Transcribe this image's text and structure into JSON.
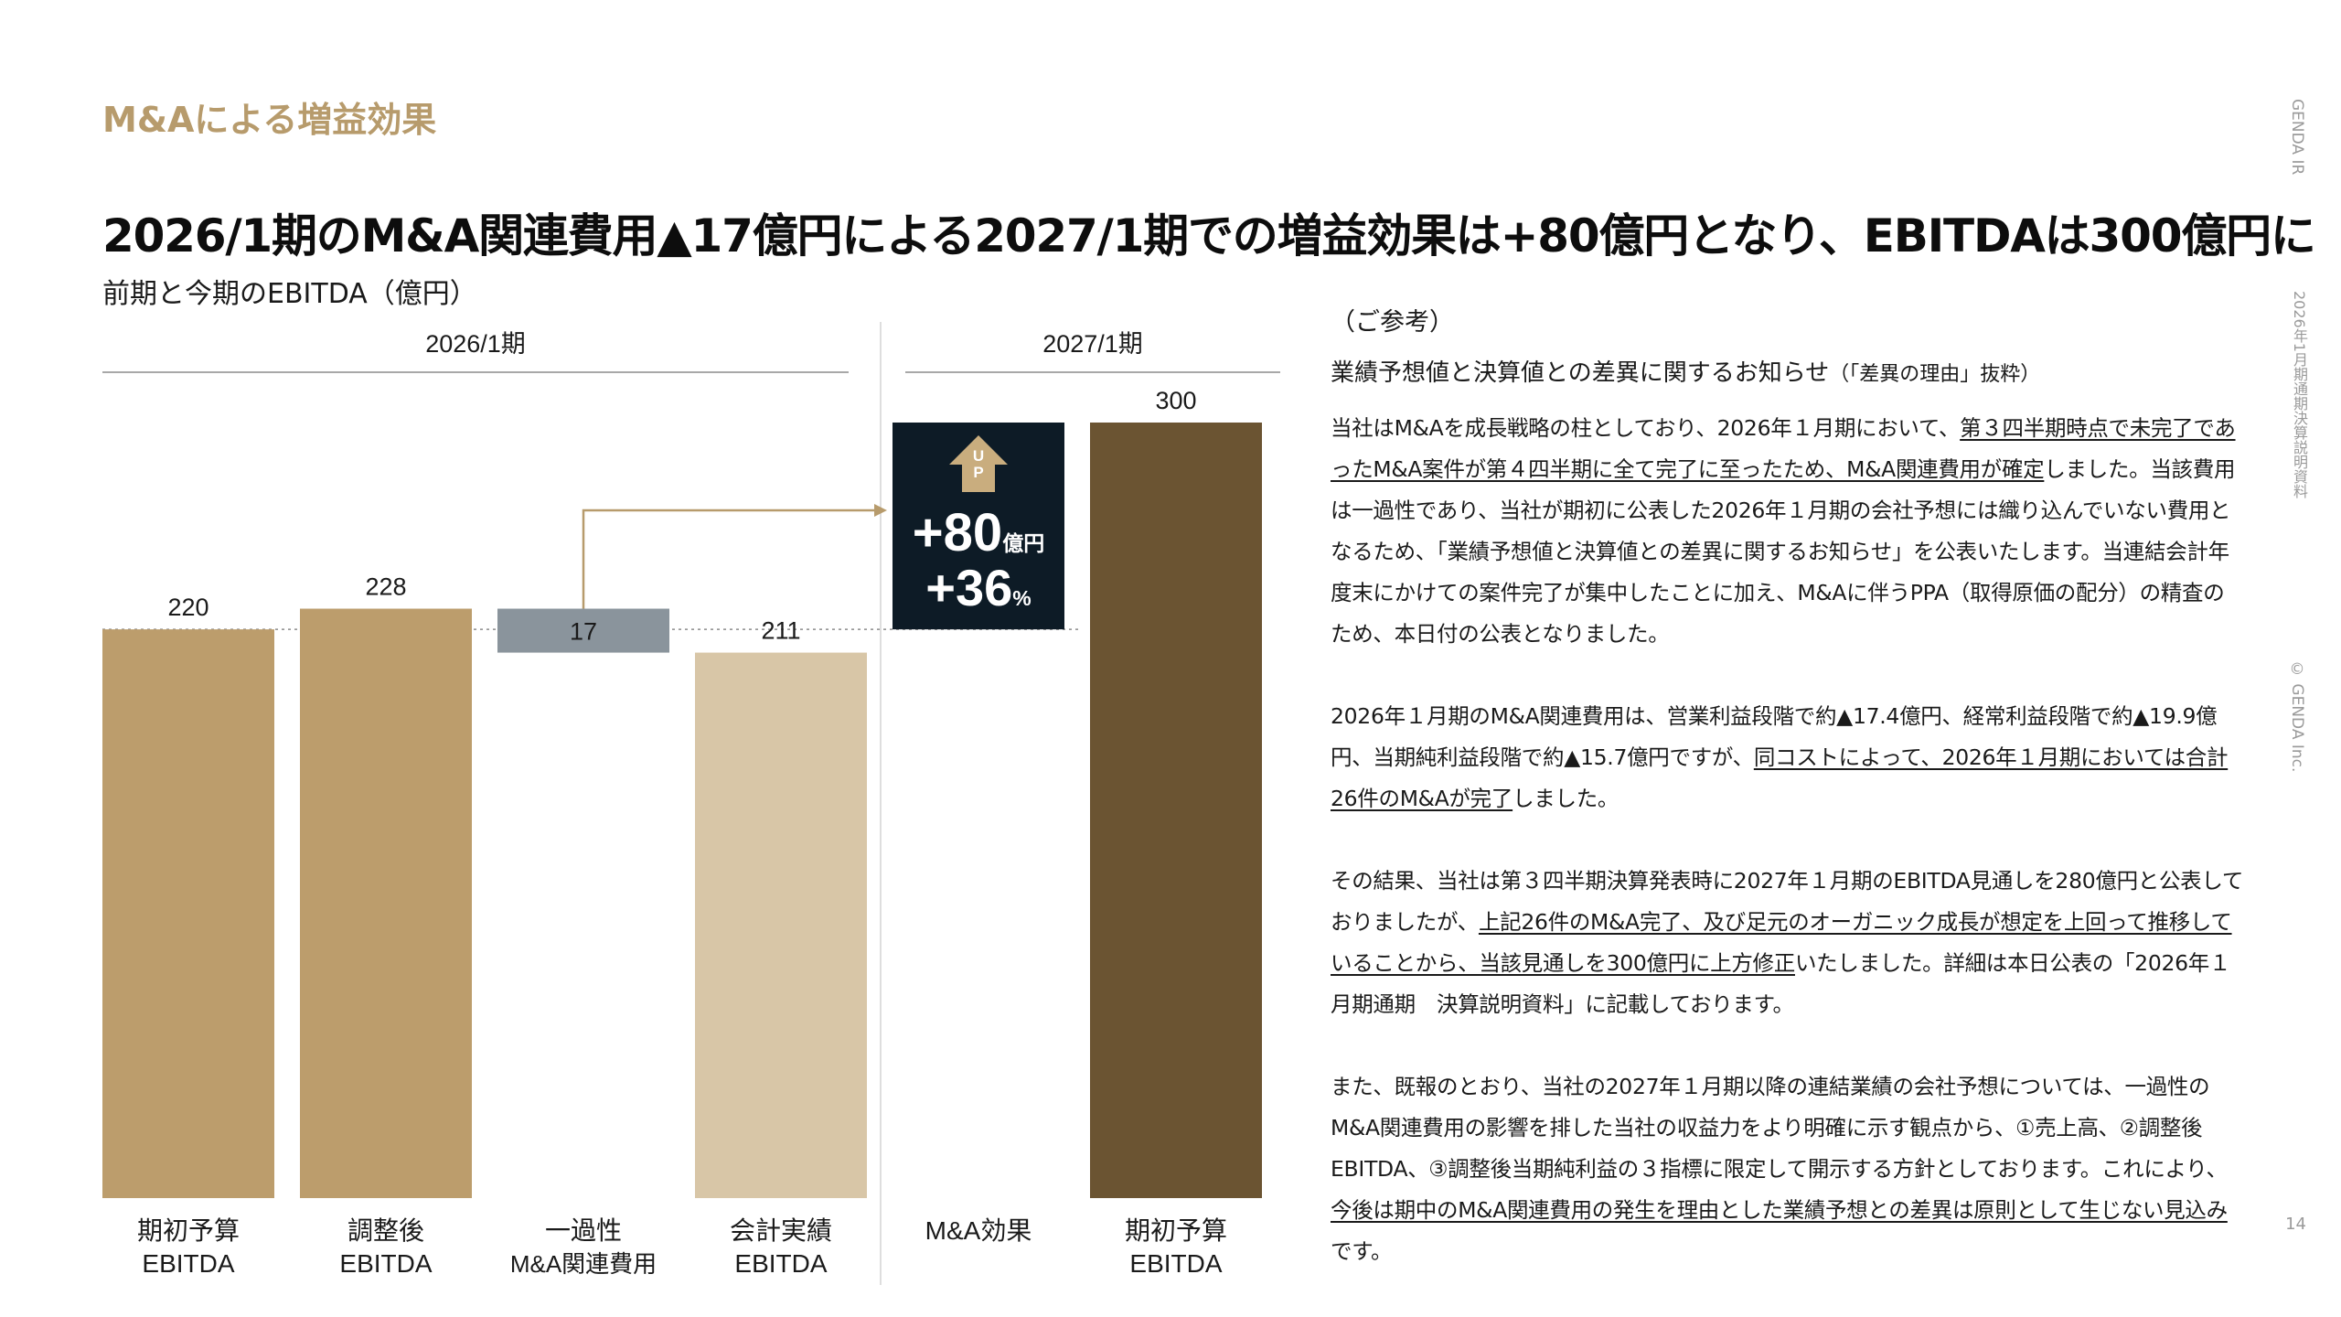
{
  "header": {
    "section_label": "M&Aによる増益効果",
    "headline": "2026/1期のM&A関連費用▲17億円による2027/1期での増益効果は+80億円となり、EBITDAは300億円に",
    "subtitle": "前期と今期のEBITDA（億円）"
  },
  "side": {
    "brand": "GENDA IR",
    "doc": "2026年1月期通期決算説明資料",
    "copyright": "© GENDA Inc.",
    "page": "14"
  },
  "colors": {
    "gold": "#bc9d6c",
    "light_gold": "#d8c6a7",
    "grey": "#8a949c",
    "brown": "#6b5432",
    "navy": "#0d1b26",
    "accent_text": "#b79b6c"
  },
  "chart_data": {
    "type": "bar",
    "subtype": "waterfall",
    "groups": [
      {
        "label": "2026/1期",
        "categories": [
          0,
          1,
          2,
          3
        ]
      },
      {
        "label": "2027/1期",
        "categories": [
          4,
          5
        ]
      }
    ],
    "categories": [
      [
        "期初予算",
        "EBITDA"
      ],
      [
        "調整後",
        "EBITDA"
      ],
      [
        "一過性",
        "M&A関連費用"
      ],
      [
        "会計実績",
        "EBITDA"
      ],
      [
        "M&A効果"
      ],
      [
        "期初予算",
        "EBITDA"
      ]
    ],
    "bars": [
      {
        "label": "220",
        "value": 220,
        "base": 0,
        "color": "#bc9d6c"
      },
      {
        "label": "228",
        "value": 228,
        "base": 0,
        "color": "#bc9d6c"
      },
      {
        "label": "17",
        "value": 17,
        "base": 211,
        "color": "#8a949c"
      },
      {
        "label": "211",
        "value": 211,
        "base": 0,
        "color": "#d8c6a7"
      },
      {
        "label": "",
        "value": 80,
        "base": 220,
        "color": "#0d1b26"
      },
      {
        "label": "300",
        "value": 300,
        "base": 0,
        "color": "#6b5432"
      }
    ],
    "callout": {
      "arrow_text": "UP",
      "amount": "+80",
      "amount_unit": "億円",
      "pct": "+36",
      "pct_unit": "%"
    },
    "reference_line": 220,
    "ylim": [
      0,
      300
    ],
    "unit": "億円"
  },
  "reference": {
    "heading": "（ご参考）",
    "title": "業績予想値と決算値との差異に関するお知らせ",
    "title_note": "（「差異の理由」抜粋）",
    "paragraphs": [
      [
        {
          "t": "当社はM&Aを成長戦略の柱としており、2026年１月期において、",
          "u": false
        },
        {
          "t": "第３四半期時点で未完了であったM&A案件が第４四半期に全て完了に至ったため、M&A関連費用が確定",
          "u": true
        },
        {
          "t": "しました。当該費用は一過性であり、当社が期初に公表した2026年１月期の会社予想には織り込んでいない費用となるため、「業績予想値と決算値との差異に関するお知らせ」を公表いたします。当連結会計年度末にかけての案件完了が集中したことに加え、M&Aに伴うPPA（取得原価の配分）の精査のため、本日付の公表となりました。",
          "u": false
        }
      ],
      [
        {
          "t": "2026年１月期のM&A関連費用は、営業利益段階で約▲17.4億円、経常利益段階で約▲19.9億円、当期純利益段階で約▲15.7億円ですが、",
          "u": false
        },
        {
          "t": "同コストによって、2026年１月期においては合計26件のM&Aが完了",
          "u": true
        },
        {
          "t": "しました。",
          "u": false
        }
      ],
      [
        {
          "t": "その結果、当社は第３四半期決算発表時に2027年１月期のEBITDA見通しを280億円と公表しておりましたが、",
          "u": false
        },
        {
          "t": "上記26件のM&A完了、及び足元のオーガニック成長が想定を上回って推移していることから、当該見通しを300億円に上方修正",
          "u": true
        },
        {
          "t": "いたしました。詳細は本日公表の「2026年１月期通期　決算説明資料」に記載しております。",
          "u": false
        }
      ],
      [
        {
          "t": "また、既報のとおり、当社の2027年１月期以降の連結業績の会社予想については、一過性のM&A関連費用の影響を排した当社の収益力をより明確に示す観点から、①売上高、②調整後EBITDA、③調整後当期純利益の３指標に限定して開示する方針としております。これにより、",
          "u": false
        },
        {
          "t": "今後は期中のM&A関連費用の発生を理由とした業績予想との差異は原則として生じない見込み",
          "u": true
        },
        {
          "t": "です。",
          "u": false
        }
      ]
    ]
  }
}
